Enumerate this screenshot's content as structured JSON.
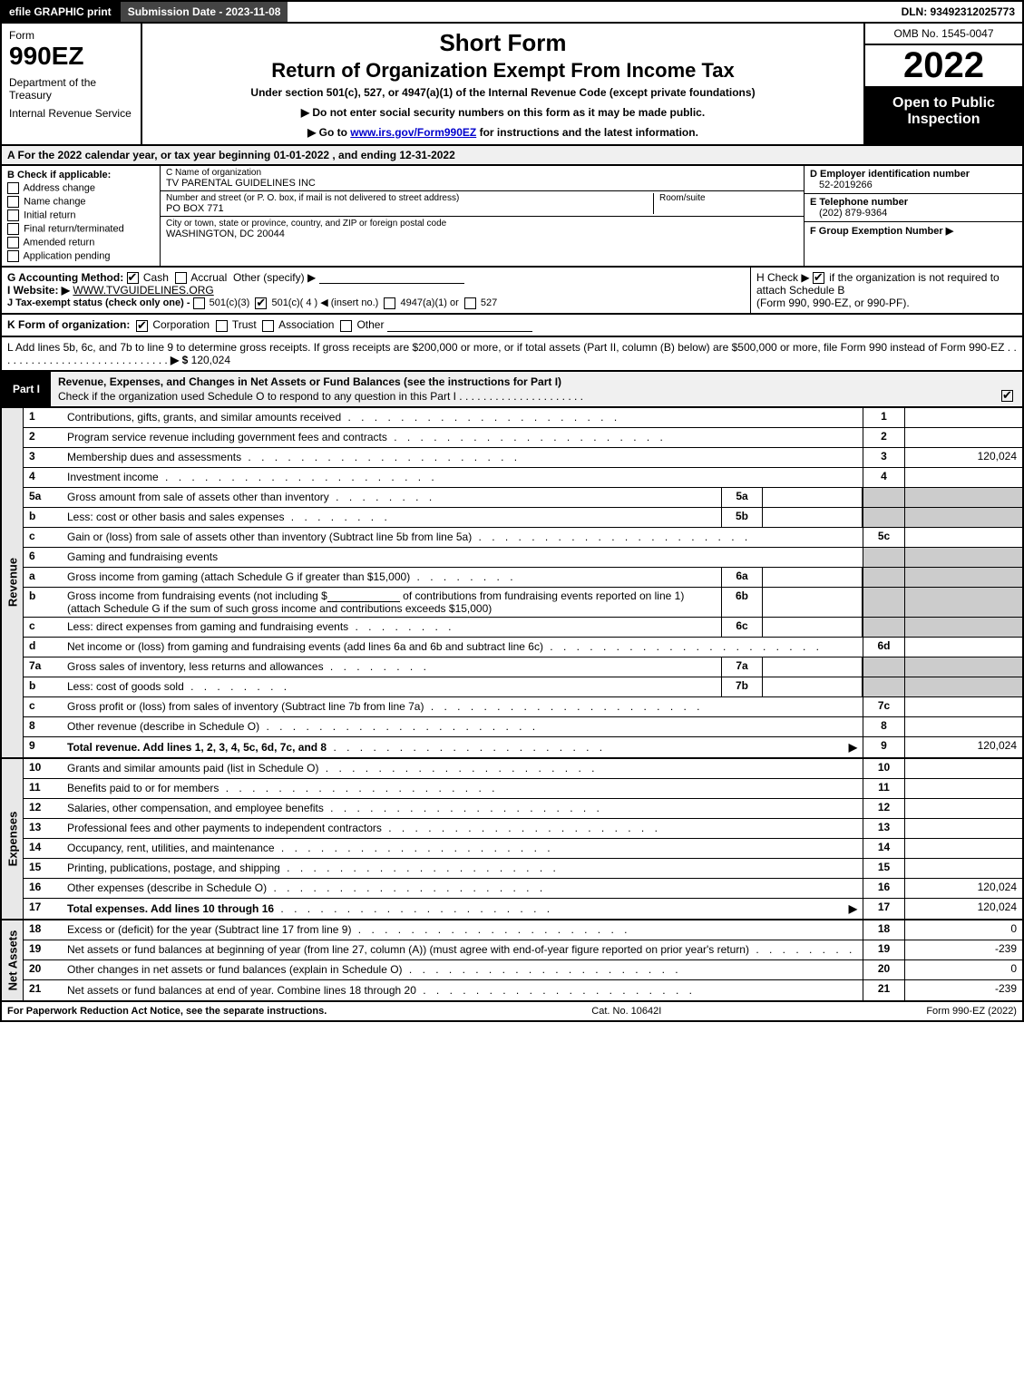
{
  "top": {
    "efile": "efile GRAPHIC print",
    "submission": "Submission Date - 2023-11-08",
    "dln": "DLN: 93492312025773"
  },
  "header": {
    "form_word": "Form",
    "form_num": "990EZ",
    "dept1": "Department of the Treasury",
    "dept2": "Internal Revenue Service",
    "short": "Short Form",
    "title": "Return of Organization Exempt From Income Tax",
    "sub": "Under section 501(c), 527, or 4947(a)(1) of the Internal Revenue Code (except private foundations)",
    "note1": "▶ Do not enter social security numbers on this form as it may be made public.",
    "note2_pre": "▶ Go to ",
    "note2_link": "www.irs.gov/Form990EZ",
    "note2_post": " for instructions and the latest information.",
    "omb": "OMB No. 1545-0047",
    "year": "2022",
    "open": "Open to Public Inspection"
  },
  "rowA": "A  For the 2022 calendar year, or tax year beginning 01-01-2022 , and ending 12-31-2022",
  "boxB": {
    "label": "B  Check if applicable:",
    "opts": [
      "Address change",
      "Name change",
      "Initial return",
      "Final return/terminated",
      "Amended return",
      "Application pending"
    ]
  },
  "boxC": {
    "name_label": "C Name of organization",
    "name_val": "TV PARENTAL GUIDELINES INC",
    "street_label": "Number and street (or P. O. box, if mail is not delivered to street address)",
    "street_val": "PO BOX 771",
    "room_label": "Room/suite",
    "city_label": "City or town, state or province, country, and ZIP or foreign postal code",
    "city_val": "WASHINGTON, DC  20044"
  },
  "boxD": {
    "label": "D Employer identification number",
    "val": "52-2019266"
  },
  "boxE": {
    "label": "E Telephone number",
    "val": "(202) 879-9364"
  },
  "boxF": {
    "label": "F Group Exemption Number  ▶",
    "val": ""
  },
  "rowG": {
    "label": "G Accounting Method:",
    "opt1": "Cash",
    "opt2": "Accrual",
    "opt3": "Other (specify) ▶"
  },
  "rowH": {
    "text1": "H  Check ▶ ",
    "text2": " if the organization is not required to attach Schedule B",
    "text3": "(Form 990, 990-EZ, or 990-PF)."
  },
  "rowI": {
    "label": "I Website: ▶",
    "val": "WWW.TVGUIDELINES.ORG"
  },
  "rowJ": {
    "label": "J Tax-exempt status (check only one) - ",
    "o1": "501(c)(3)",
    "o2": "501(c)( 4 ) ◀ (insert no.)",
    "o3": "4947(a)(1) or",
    "o4": "527"
  },
  "rowK": {
    "label": "K Form of organization:",
    "opts": [
      "Corporation",
      "Trust",
      "Association",
      "Other"
    ]
  },
  "rowL": {
    "text": "L Add lines 5b, 6c, and 7b to line 9 to determine gross receipts. If gross receipts are $200,000 or more, or if total assets (Part II, column (B) below) are $500,000 or more, file Form 990 instead of Form 990-EZ",
    "dots": ". . . . . . . . . . . . . . . . . . . . . . . . . . . . .",
    "arrow": "▶ $",
    "val": "120,024"
  },
  "part1": {
    "tag": "Part I",
    "title": "Revenue, Expenses, and Changes in Net Assets or Fund Balances (see the instructions for Part I)",
    "sub": "Check if the organization used Schedule O to respond to any question in this Part I",
    "dots": ". . . . . . . . . . . . . . . . . . . . ."
  },
  "dots_long": ". . . . . . . . . . . . . . . . . . . . .",
  "dots_med": ". . . . . . . . . . . . . .",
  "dots_short": ". . . . . . . .",
  "revenue": [
    {
      "n": "1",
      "d": "Contributions, gifts, grants, and similar amounts received",
      "c": "1",
      "v": ""
    },
    {
      "n": "2",
      "d": "Program service revenue including government fees and contracts",
      "c": "2",
      "v": ""
    },
    {
      "n": "3",
      "d": "Membership dues and assessments",
      "c": "3",
      "v": "120,024"
    },
    {
      "n": "4",
      "d": "Investment income",
      "c": "4",
      "v": ""
    }
  ],
  "line5a": {
    "n": "5a",
    "d": "Gross amount from sale of assets other than inventory",
    "mn": "5a"
  },
  "line5b": {
    "n": "b",
    "d": "Less: cost or other basis and sales expenses",
    "mn": "5b"
  },
  "line5c": {
    "n": "c",
    "d": "Gain or (loss) from sale of assets other than inventory (Subtract line 5b from line 5a)",
    "c": "5c",
    "v": ""
  },
  "line6": {
    "n": "6",
    "d": "Gaming and fundraising events"
  },
  "line6a": {
    "n": "a",
    "d": "Gross income from gaming (attach Schedule G if greater than $15,000)",
    "mn": "6a"
  },
  "line6b": {
    "n": "b",
    "d1": "Gross income from fundraising events (not including $",
    "d2": " of contributions from fundraising events reported on line 1) (attach Schedule G if the sum of such gross income and contributions exceeds $15,000)",
    "mn": "6b"
  },
  "line6c": {
    "n": "c",
    "d": "Less: direct expenses from gaming and fundraising events",
    "mn": "6c"
  },
  "line6d": {
    "n": "d",
    "d": "Net income or (loss) from gaming and fundraising events (add lines 6a and 6b and subtract line 6c)",
    "c": "6d",
    "v": ""
  },
  "line7a": {
    "n": "7a",
    "d": "Gross sales of inventory, less returns and allowances",
    "mn": "7a"
  },
  "line7b": {
    "n": "b",
    "d": "Less: cost of goods sold",
    "mn": "7b"
  },
  "line7c": {
    "n": "c",
    "d": "Gross profit or (loss) from sales of inventory (Subtract line 7b from line 7a)",
    "c": "7c",
    "v": ""
  },
  "line8": {
    "n": "8",
    "d": "Other revenue (describe in Schedule O)",
    "c": "8",
    "v": ""
  },
  "line9": {
    "n": "9",
    "d": "Total revenue. Add lines 1, 2, 3, 4, 5c, 6d, 7c, and 8",
    "c": "9",
    "v": "120,024",
    "arrow": "▶"
  },
  "expenses": [
    {
      "n": "10",
      "d": "Grants and similar amounts paid (list in Schedule O)",
      "c": "10",
      "v": ""
    },
    {
      "n": "11",
      "d": "Benefits paid to or for members",
      "c": "11",
      "v": ""
    },
    {
      "n": "12",
      "d": "Salaries, other compensation, and employee benefits",
      "c": "12",
      "v": ""
    },
    {
      "n": "13",
      "d": "Professional fees and other payments to independent contractors",
      "c": "13",
      "v": ""
    },
    {
      "n": "14",
      "d": "Occupancy, rent, utilities, and maintenance",
      "c": "14",
      "v": ""
    },
    {
      "n": "15",
      "d": "Printing, publications, postage, and shipping",
      "c": "15",
      "v": ""
    },
    {
      "n": "16",
      "d": "Other expenses (describe in Schedule O)",
      "c": "16",
      "v": "120,024"
    },
    {
      "n": "17",
      "d": "Total expenses. Add lines 10 through 16",
      "c": "17",
      "v": "120,024",
      "arrow": "▶"
    }
  ],
  "netassets": [
    {
      "n": "18",
      "d": "Excess or (deficit) for the year (Subtract line 17 from line 9)",
      "c": "18",
      "v": "0"
    },
    {
      "n": "19",
      "d": "Net assets or fund balances at beginning of year (from line 27, column (A)) (must agree with end-of-year figure reported on prior year's return)",
      "c": "19",
      "v": "-239"
    },
    {
      "n": "20",
      "d": "Other changes in net assets or fund balances (explain in Schedule O)",
      "c": "20",
      "v": "0"
    },
    {
      "n": "21",
      "d": "Net assets or fund balances at end of year. Combine lines 18 through 20",
      "c": "21",
      "v": "-239"
    }
  ],
  "side_labels": {
    "rev": "Revenue",
    "exp": "Expenses",
    "net": "Net Assets"
  },
  "footer": {
    "f1": "For Paperwork Reduction Act Notice, see the separate instructions.",
    "f2": "Cat. No. 10642I",
    "f3": "Form 990-EZ (2022)"
  }
}
